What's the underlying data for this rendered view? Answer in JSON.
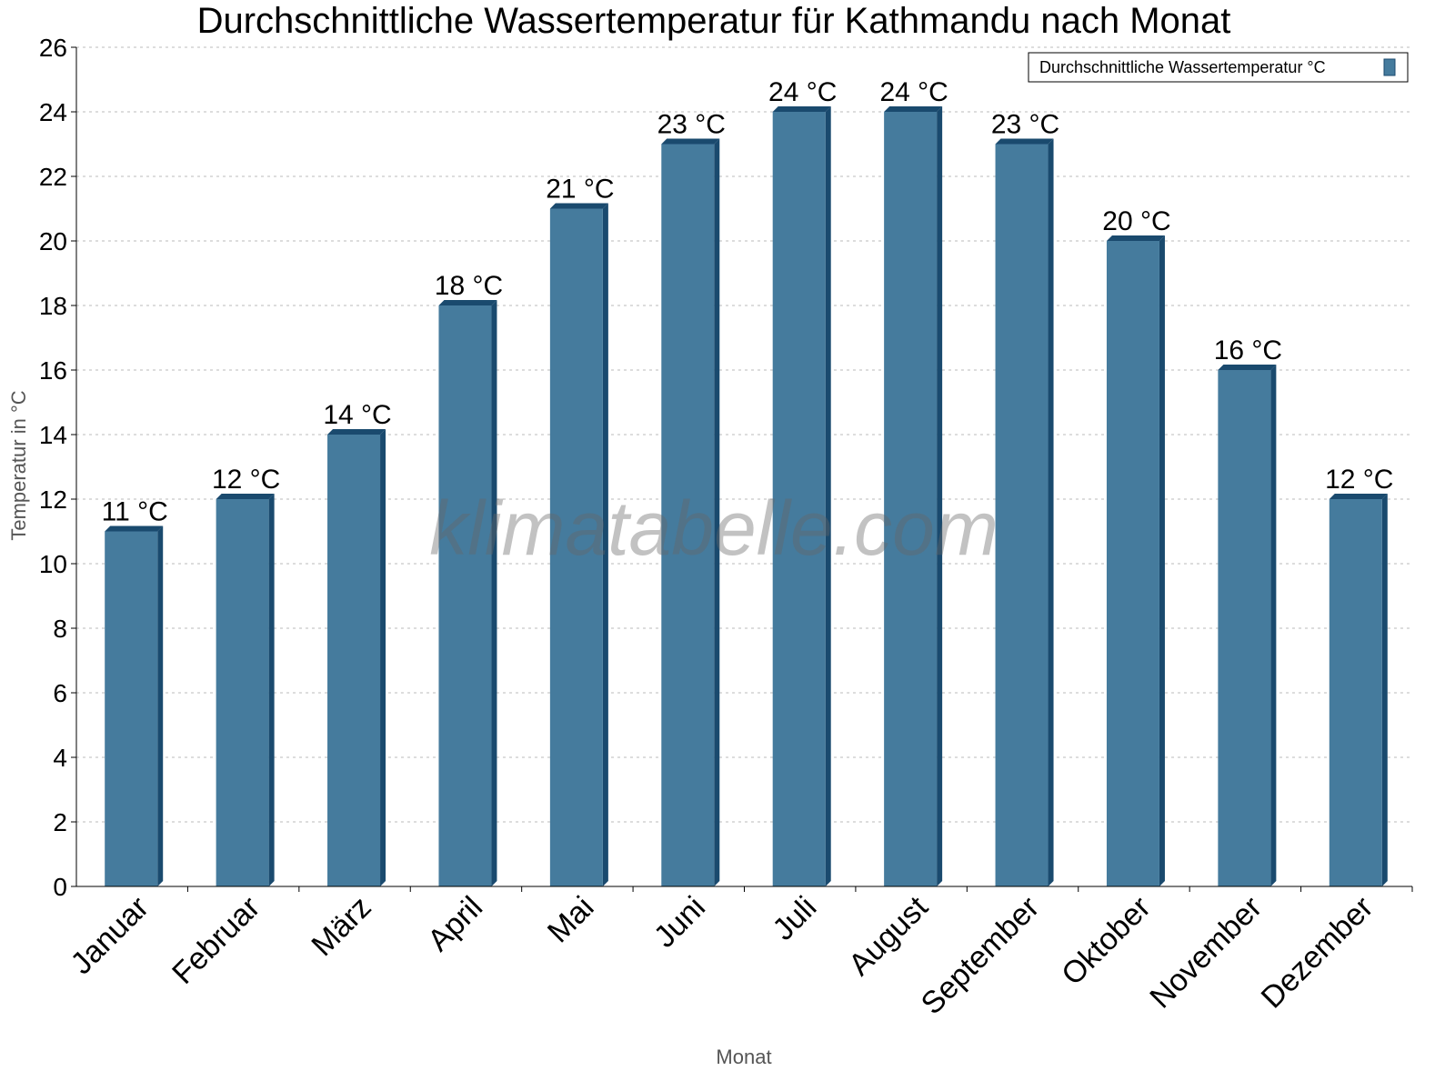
{
  "chart_data": {
    "type": "bar",
    "title": "Durchschnittliche Wassertemperatur für Kathmandu nach Monat",
    "xlabel": "Monat",
    "ylabel": "Temperatur in °C",
    "categories": [
      "Januar",
      "Februar",
      "März",
      "April",
      "Mai",
      "Juni",
      "Juli",
      "August",
      "September",
      "Oktober",
      "November",
      "Dezember"
    ],
    "series": [
      {
        "name": "Durchschnittliche Wassertemperatur °C",
        "values": [
          11,
          12,
          14,
          18,
          21,
          23,
          24,
          24,
          23,
          20,
          16,
          12
        ]
      }
    ],
    "data_labels": [
      "11 °C",
      "12 °C",
      "14 °C",
      "18 °C",
      "21 °C",
      "23 °C",
      "24 °C",
      "24 °C",
      "23 °C",
      "20 °C",
      "16 °C",
      "12 °C"
    ],
    "ylim": [
      0,
      26
    ],
    "yticks": [
      0,
      2,
      4,
      6,
      8,
      10,
      12,
      14,
      16,
      18,
      20,
      22,
      24,
      26
    ],
    "grid": true,
    "legend_placement": "top-right",
    "colors": {
      "bar_front": "#457b9d",
      "bar_side": "#1a4a6e"
    },
    "watermark": "klimatabelle.com"
  }
}
